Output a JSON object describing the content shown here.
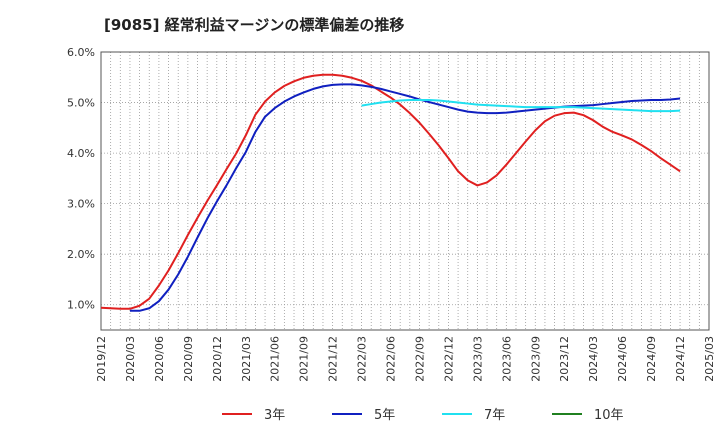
{
  "chart_data": {
    "type": "line",
    "title": "[9085]  経常利益マージンの標準偏差の推移",
    "xlabel": "",
    "ylabel": "",
    "ylim": [
      0.5,
      6.0
    ],
    "y_ticks": [
      "1.0%",
      "2.0%",
      "3.0%",
      "4.0%",
      "5.0%",
      "6.0%"
    ],
    "y_tick_values": [
      1.0,
      2.0,
      3.0,
      4.0,
      5.0,
      6.0
    ],
    "x_ticks": [
      "2019/12",
      "2020/03",
      "2020/06",
      "2020/09",
      "2020/12",
      "2021/03",
      "2021/06",
      "2021/09",
      "2021/12",
      "2022/03",
      "2022/06",
      "2022/09",
      "2022/12",
      "2023/03",
      "2023/06",
      "2023/09",
      "2023/12",
      "2024/03",
      "2024/06",
      "2024/09",
      "2024/12",
      "2025/03"
    ],
    "grid": true,
    "legend_position": "bottom",
    "series": [
      {
        "name": "3年",
        "color": "#e02020",
        "x": [
          "2019/12",
          "2020/01",
          "2020/02",
          "2020/03",
          "2020/04",
          "2020/05",
          "2020/06",
          "2020/07",
          "2020/08",
          "2020/09",
          "2020/10",
          "2020/11",
          "2020/12",
          "2021/01",
          "2021/02",
          "2021/03",
          "2021/04",
          "2021/05",
          "2021/06",
          "2021/07",
          "2021/08",
          "2021/09",
          "2021/10",
          "2021/11",
          "2021/12",
          "2022/01",
          "2022/02",
          "2022/03",
          "2022/04",
          "2022/05",
          "2022/06",
          "2022/07",
          "2022/08",
          "2022/09",
          "2022/10",
          "2022/11",
          "2022/12",
          "2023/01",
          "2023/02",
          "2023/03",
          "2023/04",
          "2023/05",
          "2023/06",
          "2023/07",
          "2023/08",
          "2023/09",
          "2023/10",
          "2023/11",
          "2023/12",
          "2024/01",
          "2024/02",
          "2024/03",
          "2024/04",
          "2024/05",
          "2024/06",
          "2024/07",
          "2024/08",
          "2024/09",
          "2024/10",
          "2024/11",
          "2024/12"
        ],
        "values": [
          0.94,
          0.93,
          0.92,
          0.92,
          0.98,
          1.12,
          1.38,
          1.68,
          2.02,
          2.38,
          2.72,
          3.05,
          3.36,
          3.68,
          3.99,
          4.35,
          4.76,
          5.02,
          5.2,
          5.33,
          5.42,
          5.49,
          5.53,
          5.55,
          5.55,
          5.53,
          5.49,
          5.43,
          5.34,
          5.22,
          5.1,
          4.96,
          4.79,
          4.6,
          4.38,
          4.15,
          3.9,
          3.64,
          3.46,
          3.36,
          3.42,
          3.56,
          3.77,
          4.0,
          4.23,
          4.45,
          4.63,
          4.74,
          4.79,
          4.8,
          4.75,
          4.65,
          4.52,
          4.42,
          4.35,
          4.27,
          4.16,
          4.04,
          3.9,
          3.77,
          3.64
        ]
      },
      {
        "name": "5年",
        "color": "#1020c0",
        "x": [
          "2020/03",
          "2020/04",
          "2020/05",
          "2020/06",
          "2020/07",
          "2020/08",
          "2020/09",
          "2020/10",
          "2020/11",
          "2020/12",
          "2021/01",
          "2021/02",
          "2021/03",
          "2021/04",
          "2021/05",
          "2021/06",
          "2021/07",
          "2021/08",
          "2021/09",
          "2021/10",
          "2021/11",
          "2021/12",
          "2022/01",
          "2022/02",
          "2022/03",
          "2022/04",
          "2022/05",
          "2022/06",
          "2022/07",
          "2022/08",
          "2022/09",
          "2022/10",
          "2022/11",
          "2022/12",
          "2023/01",
          "2023/02",
          "2023/03",
          "2023/04",
          "2023/05",
          "2023/06",
          "2023/07",
          "2023/08",
          "2023/09",
          "2023/10",
          "2023/11",
          "2023/12",
          "2024/01",
          "2024/02",
          "2024/03",
          "2024/04",
          "2024/05",
          "2024/06",
          "2024/07",
          "2024/08",
          "2024/09",
          "2024/10",
          "2024/11",
          "2024/12"
        ],
        "values": [
          0.88,
          0.88,
          0.93,
          1.07,
          1.3,
          1.6,
          1.95,
          2.33,
          2.7,
          3.04,
          3.36,
          3.7,
          4.02,
          4.42,
          4.72,
          4.89,
          5.02,
          5.12,
          5.2,
          5.27,
          5.32,
          5.35,
          5.36,
          5.36,
          5.34,
          5.31,
          5.27,
          5.22,
          5.17,
          5.12,
          5.06,
          5.01,
          4.96,
          4.91,
          4.86,
          4.82,
          4.8,
          4.79,
          4.79,
          4.8,
          4.82,
          4.84,
          4.86,
          4.88,
          4.9,
          4.92,
          4.93,
          4.94,
          4.95,
          4.97,
          4.99,
          5.01,
          5.03,
          5.04,
          5.05,
          5.05,
          5.06,
          5.08
        ]
      },
      {
        "name": "7年",
        "color": "#20e0f0",
        "x": [
          "2022/03",
          "2022/04",
          "2022/05",
          "2022/06",
          "2022/07",
          "2022/08",
          "2022/09",
          "2022/10",
          "2022/11",
          "2022/12",
          "2023/01",
          "2023/02",
          "2023/03",
          "2023/04",
          "2023/05",
          "2023/06",
          "2023/07",
          "2023/08",
          "2023/09",
          "2023/10",
          "2023/11",
          "2023/12",
          "2024/01",
          "2024/02",
          "2024/03",
          "2024/04",
          "2024/05",
          "2024/06",
          "2024/07",
          "2024/08",
          "2024/09",
          "2024/10",
          "2024/11",
          "2024/12"
        ],
        "values": [
          4.94,
          4.97,
          5.0,
          5.02,
          5.04,
          5.05,
          5.05,
          5.05,
          5.04,
          5.02,
          5.0,
          4.98,
          4.96,
          4.95,
          4.94,
          4.93,
          4.92,
          4.91,
          4.91,
          4.91,
          4.91,
          4.91,
          4.91,
          4.9,
          4.89,
          4.88,
          4.87,
          4.86,
          4.85,
          4.84,
          4.83,
          4.83,
          4.83,
          4.84
        ]
      },
      {
        "name": "10年",
        "color": "#208020",
        "x": [],
        "values": []
      }
    ]
  }
}
